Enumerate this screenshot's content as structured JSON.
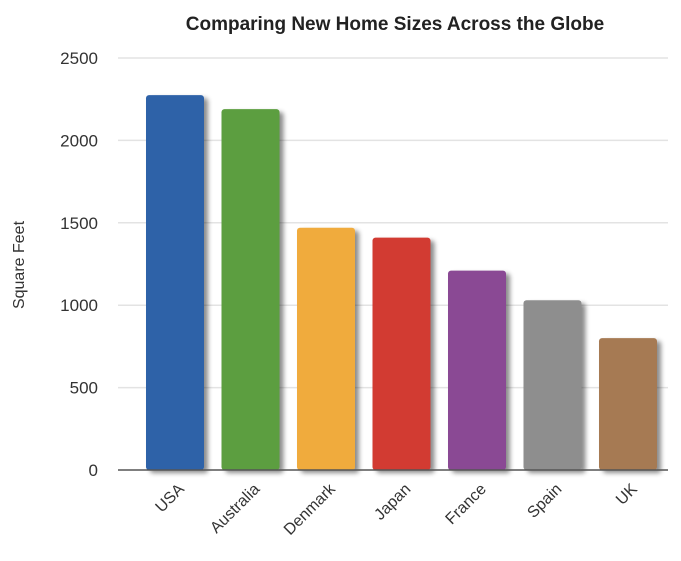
{
  "chart_data": {
    "type": "bar",
    "title": "Comparing New Home Sizes Across the Globe",
    "xlabel": "",
    "ylabel": "Square Feet",
    "ylim": [
      0,
      2500
    ],
    "yticks": [
      0,
      500,
      1000,
      1500,
      2000,
      2500
    ],
    "grid": true,
    "categories": [
      "USA",
      "Australia",
      "Denmark",
      "Japan",
      "France",
      "Spain",
      "UK"
    ],
    "values": [
      2275,
      2190,
      1470,
      1410,
      1210,
      1030,
      800
    ],
    "colors": [
      "#2f62a8",
      "#5b9e3f",
      "#f0ab3c",
      "#d23a30",
      "#8a4a94",
      "#8e8e8e",
      "#a67a53"
    ]
  }
}
